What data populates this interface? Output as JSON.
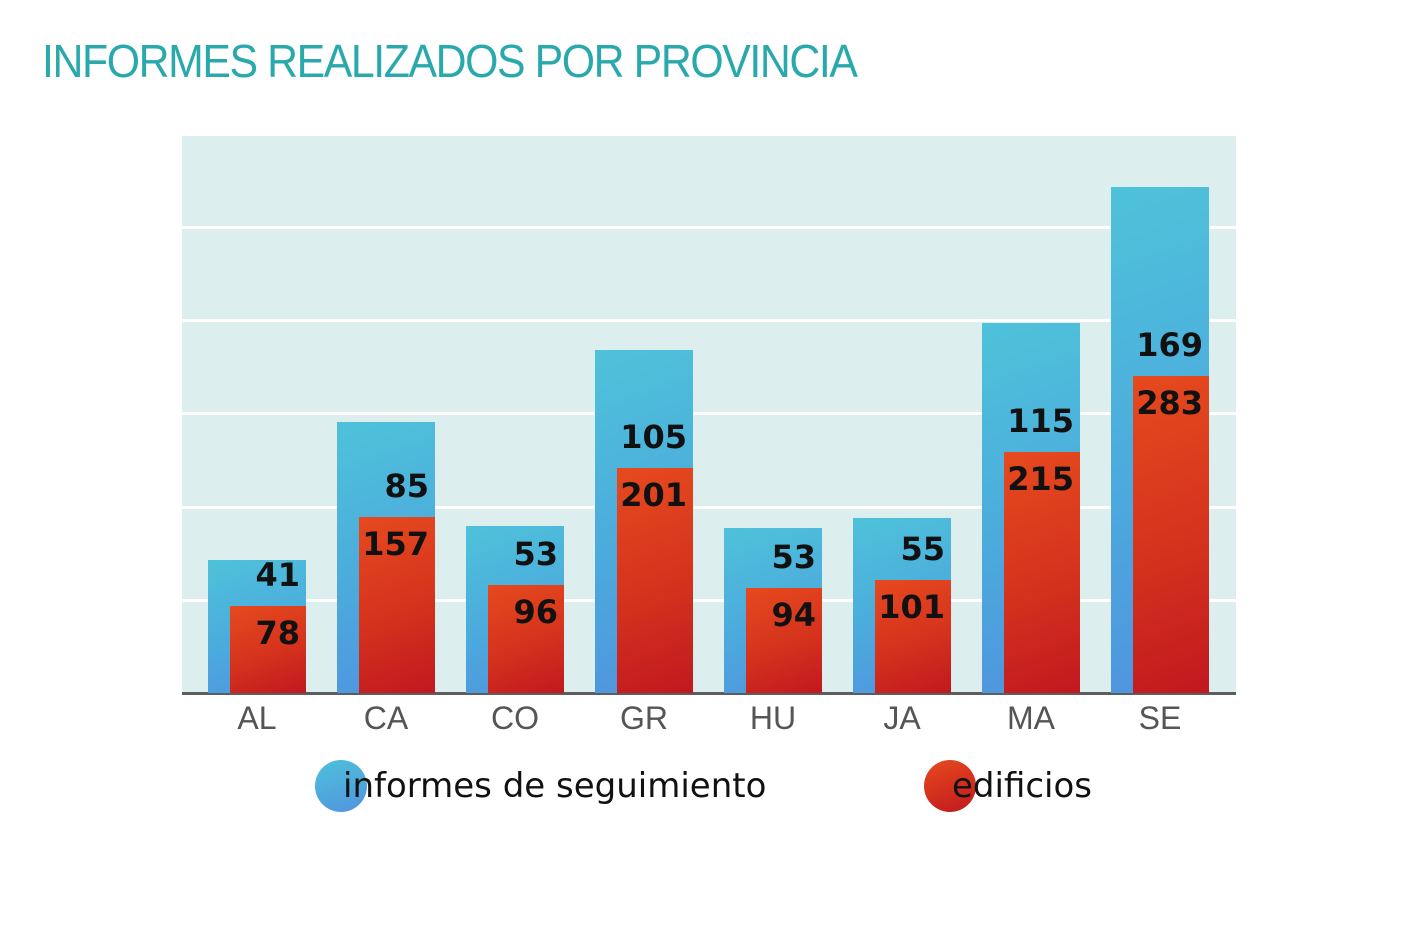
{
  "title": "INFORMES REALIZADOS POR PROVINCIA",
  "colors": {
    "title": "#2aa9ad",
    "plot_background": "#dceeed",
    "series_blue": "#4ca8dd",
    "series_red": "#d5321d",
    "axis": "#5d5d5d"
  },
  "chart_data": {
    "type": "bar",
    "title": "INFORMES REALIZADOS POR PROVINCIA",
    "xlabel": "",
    "ylabel": "",
    "grid": true,
    "legend_position": "bottom",
    "categories": [
      "AL",
      "CA",
      "CO",
      "GR",
      "HU",
      "JA",
      "MA",
      "SE"
    ],
    "series": [
      {
        "name": "informes de seguimiento",
        "values": [
          41,
          85,
          53,
          105,
          53,
          55,
          115,
          169
        ]
      },
      {
        "name": "edificios",
        "values": [
          78,
          157,
          96,
          201,
          94,
          101,
          215,
          283
        ]
      }
    ]
  },
  "legend": [
    {
      "label": "informes de seguimiento",
      "icon": "blue-circle"
    },
    {
      "label": "edificios",
      "icon": "red-circle"
    }
  ]
}
